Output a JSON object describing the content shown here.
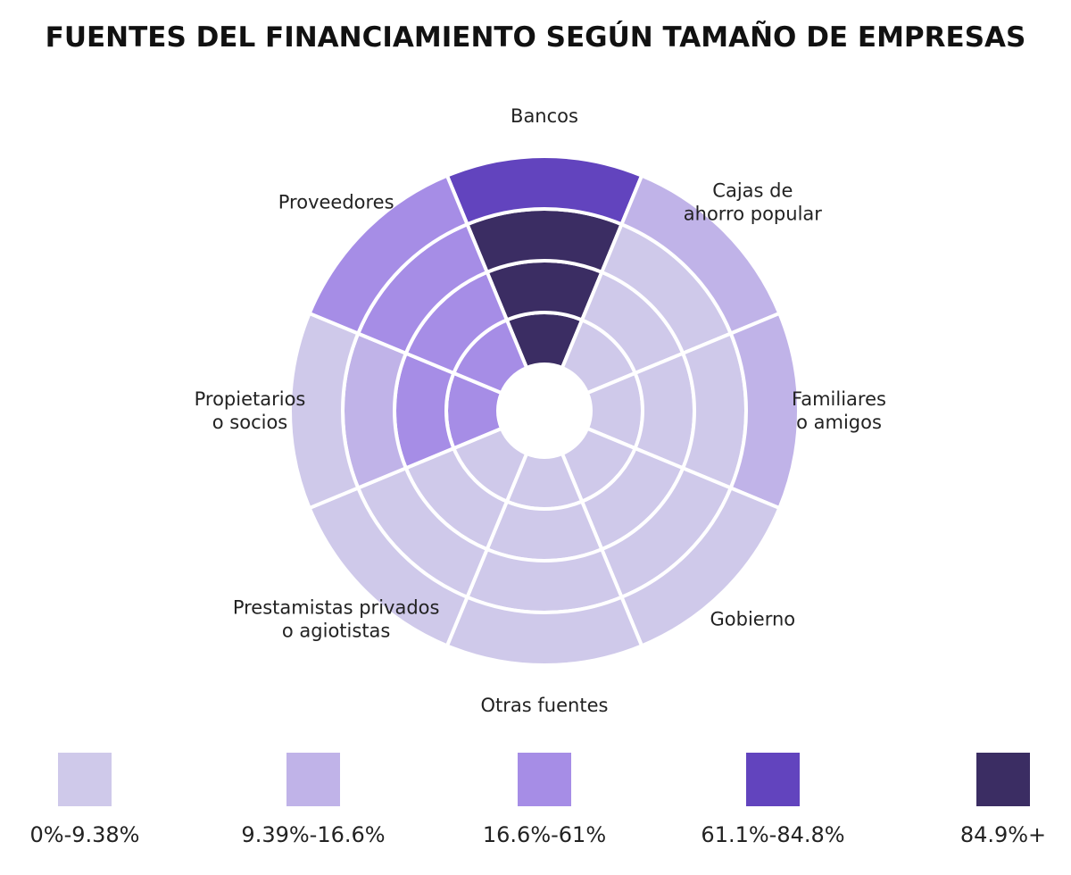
{
  "chart_data": {
    "type": "radial-heatmap",
    "title": "FUENTES DEL FINANCIAMIENTO SEGÚN TAMAÑO DE EMPRESAS",
    "categories": [
      [
        "Bancos"
      ],
      [
        "Cajas de",
        "ahorro popular"
      ],
      [
        "Familiares",
        "o amigos"
      ],
      [
        "Gobierno"
      ],
      [
        "Otras fuentes"
      ],
      [
        "Prestamistas privados",
        "o agiotistas"
      ],
      [
        "Propietarios",
        "o socios"
      ],
      [
        "Proveedores"
      ]
    ],
    "ring_count": 4,
    "bin_matrix": [
      [
        4,
        4,
        4,
        3
      ],
      [
        0,
        0,
        0,
        1
      ],
      [
        0,
        0,
        0,
        1
      ],
      [
        0,
        0,
        0,
        0
      ],
      [
        0,
        0,
        0,
        0
      ],
      [
        0,
        0,
        0,
        0
      ],
      [
        2,
        2,
        1,
        0
      ],
      [
        2,
        2,
        2,
        2
      ]
    ],
    "legend": [
      {
        "label": "0%-9.38%",
        "color": "#cfc9ea"
      },
      {
        "label": "9.39%-16.6%",
        "color": "#c0b3e8"
      },
      {
        "label": "16.6%-61%",
        "color": "#a68de6"
      },
      {
        "label": "61.1%-84.8%",
        "color": "#6244be"
      },
      {
        "label": "84.9%+",
        "color": "#3b2d63"
      }
    ]
  }
}
